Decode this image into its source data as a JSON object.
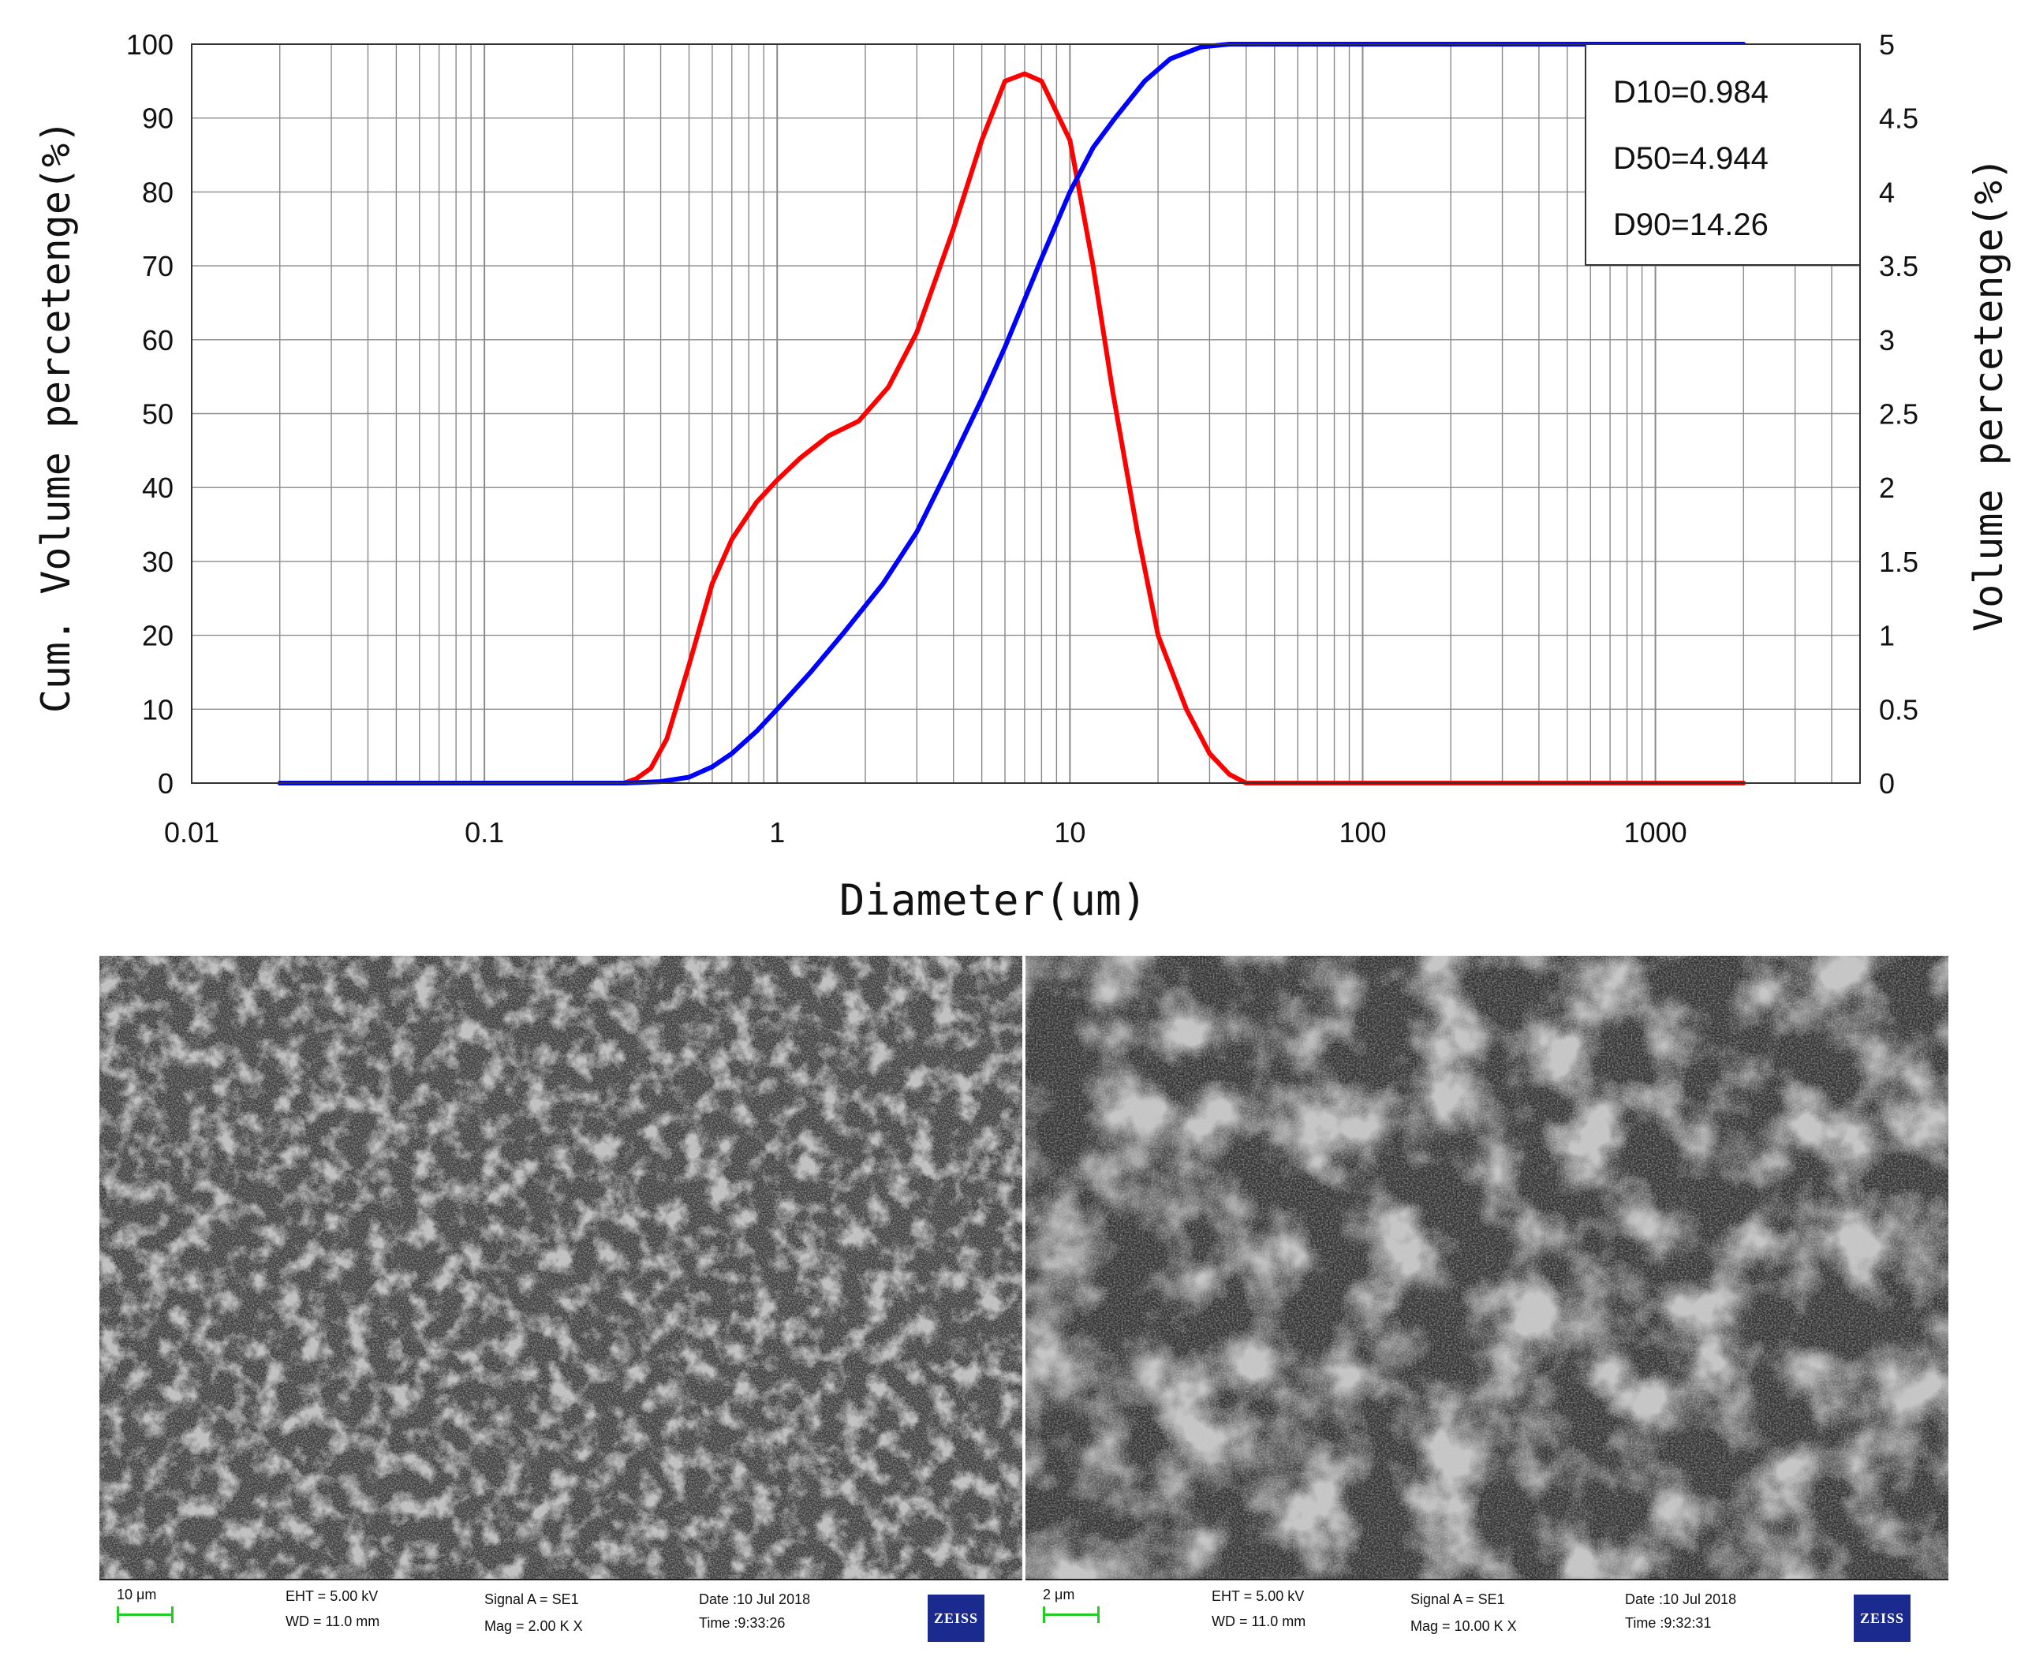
{
  "chart_data": {
    "type": "line",
    "x_scale": "log",
    "xlim": [
      0.01,
      5000
    ],
    "xlabel": "Diameter(um)",
    "ylabel_left": "Cum. Volume percetenge(%)",
    "ylabel_right": "Volume percetenge(%)",
    "ylim_left": [
      0,
      100
    ],
    "ylim_right": [
      0,
      5
    ],
    "grid": true,
    "x_ticks": [
      "0.01",
      "0.1",
      "1",
      "10",
      "100",
      "1000"
    ],
    "y_ticks_left": [
      "0",
      "10",
      "20",
      "30",
      "40",
      "50",
      "60",
      "70",
      "80",
      "90",
      "100"
    ],
    "y_ticks_right": [
      "0",
      "0.5",
      "1",
      "1.5",
      "2",
      "2.5",
      "3",
      "3.5",
      "4",
      "4.5",
      "5"
    ],
    "legend_placement": "top-right",
    "annotations": [
      "D10=0.984",
      "D50=4.944",
      "D90=14.26"
    ],
    "series": [
      {
        "axis": "right",
        "color": "#ff0000",
        "points": [
          [
            0.02,
            0
          ],
          [
            0.3,
            0
          ],
          [
            0.33,
            0.03
          ],
          [
            0.37,
            0.1
          ],
          [
            0.42,
            0.3
          ],
          [
            0.5,
            0.8
          ],
          [
            0.6,
            1.35
          ],
          [
            0.7,
            1.65
          ],
          [
            0.85,
            1.9
          ],
          [
            1.0,
            2.05
          ],
          [
            1.2,
            2.2
          ],
          [
            1.5,
            2.35
          ],
          [
            1.9,
            2.45
          ],
          [
            2.4,
            2.68
          ],
          [
            3.0,
            3.05
          ],
          [
            4.0,
            3.75
          ],
          [
            5.0,
            4.35
          ],
          [
            6.0,
            4.75
          ],
          [
            7.0,
            4.8
          ],
          [
            8.0,
            4.75
          ],
          [
            10,
            4.35
          ],
          [
            12,
            3.5
          ],
          [
            14,
            2.65
          ],
          [
            17,
            1.7
          ],
          [
            20,
            1.0
          ],
          [
            25,
            0.5
          ],
          [
            30,
            0.2
          ],
          [
            35,
            0.06
          ],
          [
            40,
            0
          ],
          [
            100,
            0
          ],
          [
            2000,
            0
          ]
        ]
      },
      {
        "axis": "left",
        "color": "#0000ff",
        "points": [
          [
            0.02,
            0
          ],
          [
            0.3,
            0
          ],
          [
            0.4,
            0.2
          ],
          [
            0.5,
            0.8
          ],
          [
            0.6,
            2.2
          ],
          [
            0.7,
            4
          ],
          [
            0.85,
            7
          ],
          [
            1.0,
            10
          ],
          [
            1.3,
            15
          ],
          [
            1.7,
            20.5
          ],
          [
            2.3,
            27
          ],
          [
            3.0,
            34
          ],
          [
            4.0,
            44
          ],
          [
            5.0,
            52
          ],
          [
            6.0,
            59
          ],
          [
            8.0,
            71
          ],
          [
            10,
            80
          ],
          [
            12,
            86
          ],
          [
            14.26,
            90
          ],
          [
            18,
            95
          ],
          [
            22,
            98
          ],
          [
            28,
            99.6
          ],
          [
            35,
            100
          ],
          [
            100,
            100
          ],
          [
            2000,
            100
          ]
        ]
      }
    ]
  },
  "sem": {
    "left": {
      "scale_text": "10 μm",
      "eht": "EHT =  5.00 kV",
      "wd": "WD = 11.0 mm",
      "signal": "Signal A = SE1",
      "mag": "Mag =   2.00 K X",
      "date": "Date :10 Jul 2018",
      "time": "Time :9:33:26",
      "logo": "ZEISS"
    },
    "right": {
      "scale_text": "2 μm",
      "eht": "EHT =  5.00 kV",
      "wd": "WD = 11.0 mm",
      "signal": "Signal A = SE1",
      "mag": "Mag =  10.00 K X",
      "date": "Date :10 Jul 2018",
      "time": "Time :9:32:31",
      "logo": "ZEISS"
    }
  }
}
